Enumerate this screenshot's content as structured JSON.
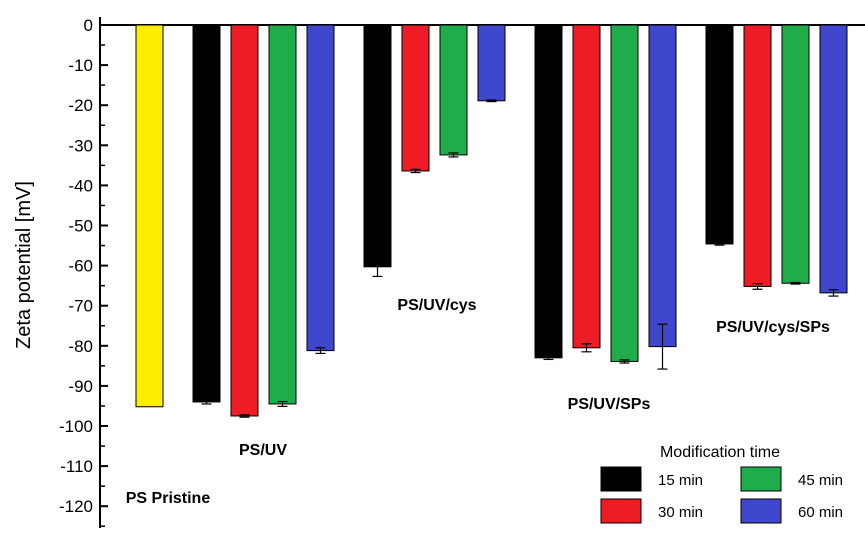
{
  "chart_data": {
    "type": "bar",
    "ylabel": "Zeta potential [mV]",
    "xlabel": "",
    "ylim": [
      -128,
      0
    ],
    "yticks": [
      0,
      -10,
      -20,
      -30,
      -40,
      -50,
      -60,
      -70,
      -80,
      -90,
      -100,
      -110,
      -120
    ],
    "grid": false,
    "groups": [
      {
        "label": "PS Pristine",
        "bars": [
          {
            "series": "",
            "value": -95.2,
            "error": 0,
            "color": "#ffee00"
          }
        ]
      },
      {
        "label": "PS/UV",
        "bars": [
          {
            "series": "15 min",
            "value": -94.0,
            "error": 0.5
          },
          {
            "series": "30 min",
            "value": -97.5,
            "error": 0.3
          },
          {
            "series": "45 min",
            "value": -94.5,
            "error": 0.6
          },
          {
            "series": "60 min",
            "value": -81.2,
            "error": 0.7
          }
        ]
      },
      {
        "label": "PS/UV/cys",
        "bars": [
          {
            "series": "15 min",
            "value": -60.3,
            "error": 2.4
          },
          {
            "series": "30 min",
            "value": -36.4,
            "error": 0.4
          },
          {
            "series": "45 min",
            "value": -32.4,
            "error": 0.5
          },
          {
            "series": "60 min",
            "value": -18.9,
            "error": 0.2
          }
        ]
      },
      {
        "label": "PS/UV/SPs",
        "bars": [
          {
            "series": "15 min",
            "value": -83.0,
            "error": 0.4
          },
          {
            "series": "30 min",
            "value": -80.5,
            "error": 1.0
          },
          {
            "series": "45 min",
            "value": -83.9,
            "error": 0.4
          },
          {
            "series": "60 min",
            "value": -80.2,
            "error": 5.6
          }
        ]
      },
      {
        "label": "PS/UV/cys/SPs",
        "bars": [
          {
            "series": "15 min",
            "value": -54.6,
            "error": 0.3
          },
          {
            "series": "30 min",
            "value": -65.2,
            "error": 0.7
          },
          {
            "series": "45 min",
            "value": -64.4,
            "error": 0.2
          },
          {
            "series": "60 min",
            "value": -66.8,
            "error": 0.8
          }
        ]
      }
    ],
    "series": [
      {
        "name": "15 min",
        "color": "#000000"
      },
      {
        "name": "30 min",
        "color": "#ee1c25"
      },
      {
        "name": "45 min",
        "color": "#1fad4b"
      },
      {
        "name": "60 min",
        "color": "#3f48cc"
      }
    ],
    "legend": {
      "title": "Modification time",
      "position": "bottom-right",
      "entries": [
        "15 min",
        "45 min",
        "30 min",
        "60 min"
      ]
    }
  }
}
